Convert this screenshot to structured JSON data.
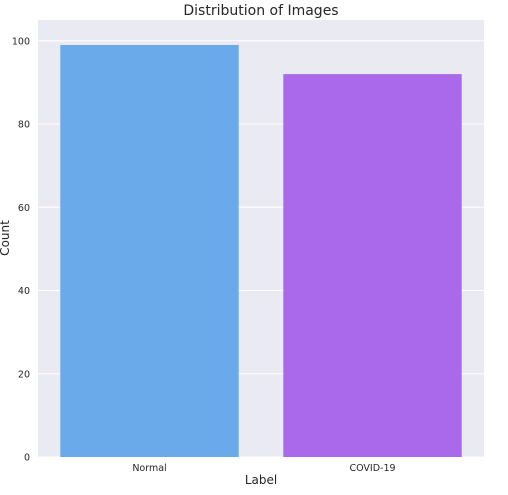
{
  "chart_data": {
    "type": "bar",
    "title": "Distribution of Images",
    "xlabel": "Label",
    "ylabel": "Count",
    "categories": [
      "Normal",
      "COVID-19"
    ],
    "values": [
      99,
      92
    ],
    "ylim": [
      0,
      105
    ],
    "yticks": [
      0,
      20,
      40,
      60,
      80,
      100
    ],
    "colors": [
      "#6aaaeb",
      "#aa69eb"
    ],
    "background": "#eaeaf2",
    "grid": true,
    "legend": "none"
  }
}
